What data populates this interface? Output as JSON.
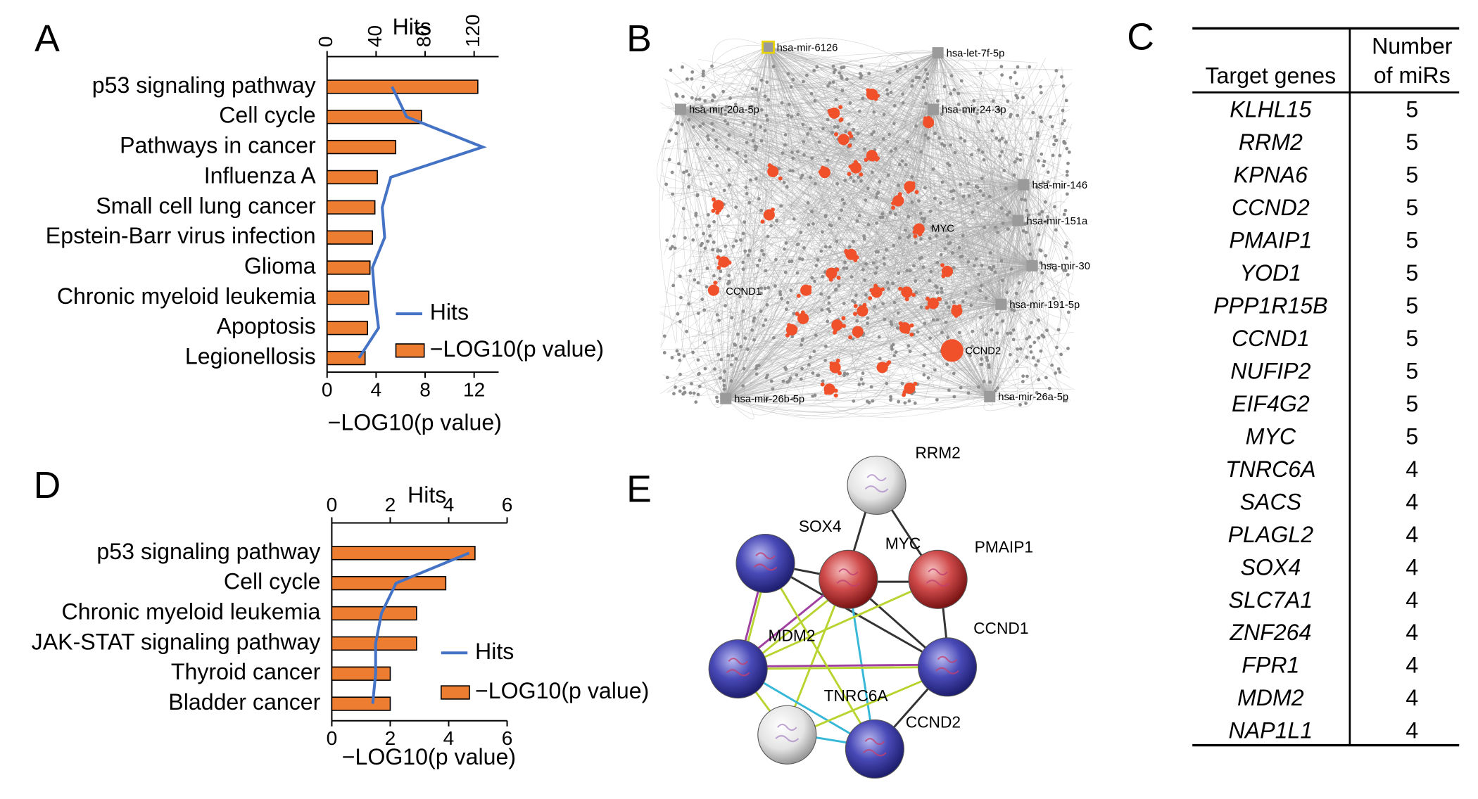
{
  "panel_labels": [
    "A",
    "B",
    "C",
    "D",
    "E"
  ],
  "chart_data": [
    {
      "type": "bar",
      "orientation": "horizontal",
      "categories": [
        "p53 signaling pathway",
        "Cell cycle",
        "Pathways in cancer",
        "Influenza A",
        "Small cell lung cancer",
        "Epstein-Barr virus infection",
        "Glioma",
        "Chronic myeloid leukemia",
        "Apoptosis",
        "Legionellosis"
      ],
      "series": [
        {
          "name": "−LOG10(p value)",
          "color": "#ed7d31",
          "values": [
            12.3,
            7.7,
            5.6,
            4.1,
            3.9,
            3.7,
            3.5,
            3.4,
            3.3,
            3.1
          ]
        },
        {
          "name": "Hits",
          "type": "line",
          "axis": "x2",
          "color": "#4472c4",
          "values": [
            53,
            65,
            127,
            52,
            45,
            47,
            37,
            39,
            42,
            26
          ]
        }
      ],
      "xlabel": "−LOG10(p value)",
      "x2label": "Hits",
      "xlim": [
        0,
        14
      ],
      "xticks": [
        0,
        4,
        8,
        12
      ],
      "x2lim": [
        0,
        140
      ],
      "x2ticks": [
        0,
        40,
        80,
        120
      ]
    },
    {
      "type": "bar",
      "orientation": "horizontal",
      "categories": [
        "p53 signaling pathway",
        "Cell cycle",
        "Chronic myeloid leukemia",
        "JAK-STAT signaling pathway",
        "Thyroid cancer",
        "Bladder cancer"
      ],
      "series": [
        {
          "name": "−LOG10(p value)",
          "color": "#ed7d31",
          "values": [
            4.9,
            3.9,
            2.9,
            2.9,
            2.0,
            2.0
          ]
        },
        {
          "name": "Hits",
          "type": "line",
          "axis": "x2",
          "color": "#4472c4",
          "values": [
            4.7,
            2.2,
            1.7,
            1.5,
            1.5,
            1.4
          ]
        }
      ],
      "xlabel": "−LOG10(p value)",
      "x2label": "Hits",
      "xlim": [
        0,
        6
      ],
      "xticks": [
        0,
        2,
        4,
        6
      ],
      "x2lim": [
        0,
        6
      ],
      "x2ticks": [
        0,
        2,
        4,
        6
      ]
    }
  ],
  "mirna_network": {
    "mirnas": [
      "hsa-mir-6126",
      "hsa-let-7f-5p",
      "hsa-mir-20a-5p",
      "hsa-mir-24-3p",
      "hsa-mir-146",
      "hsa-mir-151a",
      "hsa-mir-30",
      "hsa-mir-191-5p",
      "hsa-mir-26b-5p",
      "hsa-mir-26a-5p"
    ],
    "genes": [
      "MYC",
      "CCND1",
      "CCND2"
    ]
  },
  "target_table": {
    "headers": [
      "Target genes",
      "Number of miRs"
    ],
    "rows": [
      [
        "KLHL15",
        "5"
      ],
      [
        "RRM2",
        "5"
      ],
      [
        "KPNA6",
        "5"
      ],
      [
        "CCND2",
        "5"
      ],
      [
        "PMAIP1",
        "5"
      ],
      [
        "YOD1",
        "5"
      ],
      [
        "PPP1R15B",
        "5"
      ],
      [
        "CCND1",
        "5"
      ],
      [
        "NUFIP2",
        "5"
      ],
      [
        "EIF4G2",
        "5"
      ],
      [
        "MYC",
        "5"
      ],
      [
        "TNRC6A",
        "4"
      ],
      [
        "SACS",
        "4"
      ],
      [
        "PLAGL2",
        "4"
      ],
      [
        "SOX4",
        "4"
      ],
      [
        "SLC7A1",
        "4"
      ],
      [
        "ZNF264",
        "4"
      ],
      [
        "FPR1",
        "4"
      ],
      [
        "MDM2",
        "4"
      ],
      [
        "NAP1L1",
        "4"
      ]
    ]
  },
  "protein_network": {
    "nodes": [
      "RRM2",
      "SOX4",
      "MYC",
      "PMAIP1",
      "MDM2",
      "CCND1",
      "TNRC6A",
      "CCND2"
    ]
  }
}
